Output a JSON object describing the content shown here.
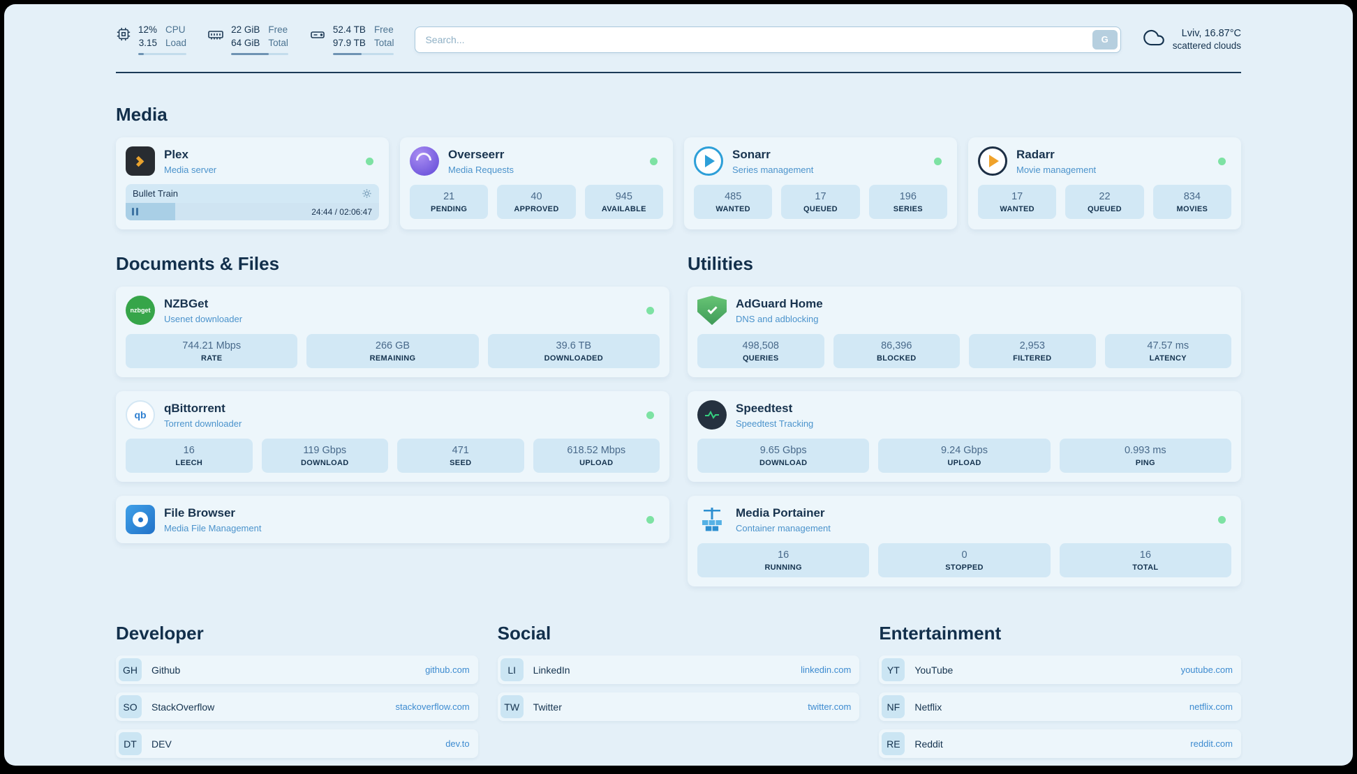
{
  "theme": {
    "accent": "#3d8bd0",
    "status_ok": "#7de2a3",
    "background": "#e4f0f8",
    "card": "#edf6fb",
    "tile": "#d2e8f5"
  },
  "topbar": {
    "cpu": {
      "value": "12%",
      "value2": "3.15",
      "label": "CPU",
      "label2": "Load",
      "percent": 12
    },
    "memory": {
      "value": "22 GiB",
      "value2": "64 GiB",
      "label": "Free",
      "label2": "Total",
      "percent": 66
    },
    "disk": {
      "value": "52.4 TB",
      "value2": "97.9 TB",
      "label": "Free",
      "label2": "Total",
      "percent": 47
    },
    "search": {
      "placeholder": "Search...",
      "button": "G"
    },
    "weather": {
      "location": "Lviv, 16.87°C",
      "condition": "scattered clouds"
    }
  },
  "media": {
    "heading": "Media",
    "plex": {
      "title": "Plex",
      "subtitle": "Media server",
      "now_playing": "Bullet Train",
      "time": "24:44 / 02:06:47",
      "progress_percent": 19.5
    },
    "overseerr": {
      "title": "Overseerr",
      "subtitle": "Media Requests",
      "stats": [
        {
          "value": "21",
          "label": "PENDING"
        },
        {
          "value": "40",
          "label": "APPROVED"
        },
        {
          "value": "945",
          "label": "AVAILABLE"
        }
      ]
    },
    "sonarr": {
      "title": "Sonarr",
      "subtitle": "Series management",
      "stats": [
        {
          "value": "485",
          "label": "WANTED"
        },
        {
          "value": "17",
          "label": "QUEUED"
        },
        {
          "value": "196",
          "label": "SERIES"
        }
      ]
    },
    "radarr": {
      "title": "Radarr",
      "subtitle": "Movie management",
      "stats": [
        {
          "value": "17",
          "label": "WANTED"
        },
        {
          "value": "22",
          "label": "QUEUED"
        },
        {
          "value": "834",
          "label": "MOVIES"
        }
      ]
    }
  },
  "documents": {
    "heading": "Documents & Files",
    "nzbget": {
      "title": "NZBGet",
      "subtitle": "Usenet downloader",
      "icon_text": "nzbget",
      "stats": [
        {
          "value": "744.21 Mbps",
          "label": "RATE"
        },
        {
          "value": "266 GB",
          "label": "REMAINING"
        },
        {
          "value": "39.6 TB",
          "label": "DOWNLOADED"
        }
      ]
    },
    "qbittorrent": {
      "title": "qBittorrent",
      "subtitle": "Torrent downloader",
      "icon_text": "qb",
      "stats": [
        {
          "value": "16",
          "label": "LEECH"
        },
        {
          "value": "119 Gbps",
          "label": "DOWNLOAD"
        },
        {
          "value": "471",
          "label": "SEED"
        },
        {
          "value": "618.52 Mbps",
          "label": "UPLOAD"
        }
      ]
    },
    "filebrowser": {
      "title": "File Browser",
      "subtitle": "Media File Management"
    }
  },
  "utilities": {
    "heading": "Utilities",
    "adguard": {
      "title": "AdGuard Home",
      "subtitle": "DNS and adblocking",
      "stats": [
        {
          "value": "498,508",
          "label": "QUERIES"
        },
        {
          "value": "86,396",
          "label": "BLOCKED"
        },
        {
          "value": "2,953",
          "label": "FILTERED"
        },
        {
          "value": "47.57 ms",
          "label": "LATENCY"
        }
      ]
    },
    "speedtest": {
      "title": "Speedtest",
      "subtitle": "Speedtest Tracking",
      "stats": [
        {
          "value": "9.65 Gbps",
          "label": "DOWNLOAD"
        },
        {
          "value": "9.24 Gbps",
          "label": "UPLOAD"
        },
        {
          "value": "0.993 ms",
          "label": "PING"
        }
      ]
    },
    "portainer": {
      "title": "Media Portainer",
      "subtitle": "Container management",
      "stats": [
        {
          "value": "16",
          "label": "RUNNING"
        },
        {
          "value": "0",
          "label": "STOPPED"
        },
        {
          "value": "16",
          "label": "TOTAL"
        }
      ]
    }
  },
  "bookmarks": {
    "developer": {
      "heading": "Developer",
      "items": [
        {
          "abbr": "GH",
          "name": "Github",
          "url": "github.com"
        },
        {
          "abbr": "SO",
          "name": "StackOverflow",
          "url": "stackoverflow.com"
        },
        {
          "abbr": "DT",
          "name": "DEV",
          "url": "dev.to"
        }
      ]
    },
    "social": {
      "heading": "Social",
      "items": [
        {
          "abbr": "LI",
          "name": "LinkedIn",
          "url": "linkedin.com"
        },
        {
          "abbr": "TW",
          "name": "Twitter",
          "url": "twitter.com"
        }
      ]
    },
    "entertainment": {
      "heading": "Entertainment",
      "items": [
        {
          "abbr": "YT",
          "name": "YouTube",
          "url": "youtube.com"
        },
        {
          "abbr": "NF",
          "name": "Netflix",
          "url": "netflix.com"
        },
        {
          "abbr": "RE",
          "name": "Reddit",
          "url": "reddit.com"
        }
      ]
    }
  }
}
